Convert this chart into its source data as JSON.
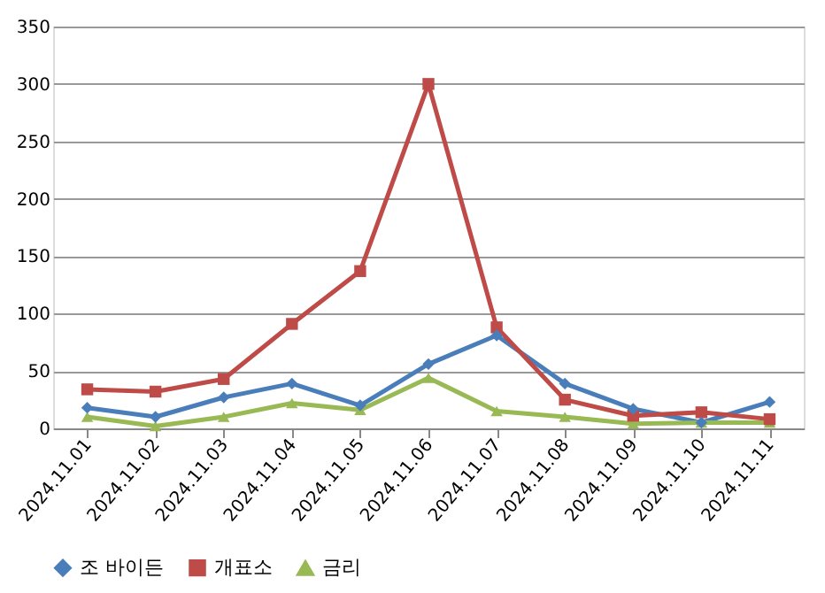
{
  "chart_data": {
    "type": "line",
    "categories": [
      "2024.11.01",
      "2024.11.02",
      "2024.11.03",
      "2024.11.04",
      "2024.11.05",
      "2024.11.06",
      "2024.11.07",
      "2024.11.08",
      "2024.11.09",
      "2024.11.10",
      "2024.11.11"
    ],
    "series": [
      {
        "name": "조 바이든",
        "color": "#4a7ebb",
        "marker": "diamond",
        "values": [
          18,
          10,
          27,
          39,
          20,
          56,
          81,
          39,
          17,
          5,
          23
        ]
      },
      {
        "name": "개표소",
        "color": "#be4b48",
        "marker": "square",
        "values": [
          34,
          32,
          43,
          91,
          137,
          300,
          88,
          25,
          11,
          14,
          8
        ]
      },
      {
        "name": "금리",
        "color": "#98b954",
        "marker": "triangle",
        "values": [
          10,
          2,
          10,
          22,
          16,
          44,
          15,
          10,
          4,
          5,
          5
        ]
      }
    ],
    "ylim": [
      0,
      350
    ],
    "yticks": [
      0,
      50,
      100,
      150,
      200,
      250,
      300,
      350
    ],
    "grid": "y",
    "legend": "bottom",
    "line_style": "solid"
  }
}
